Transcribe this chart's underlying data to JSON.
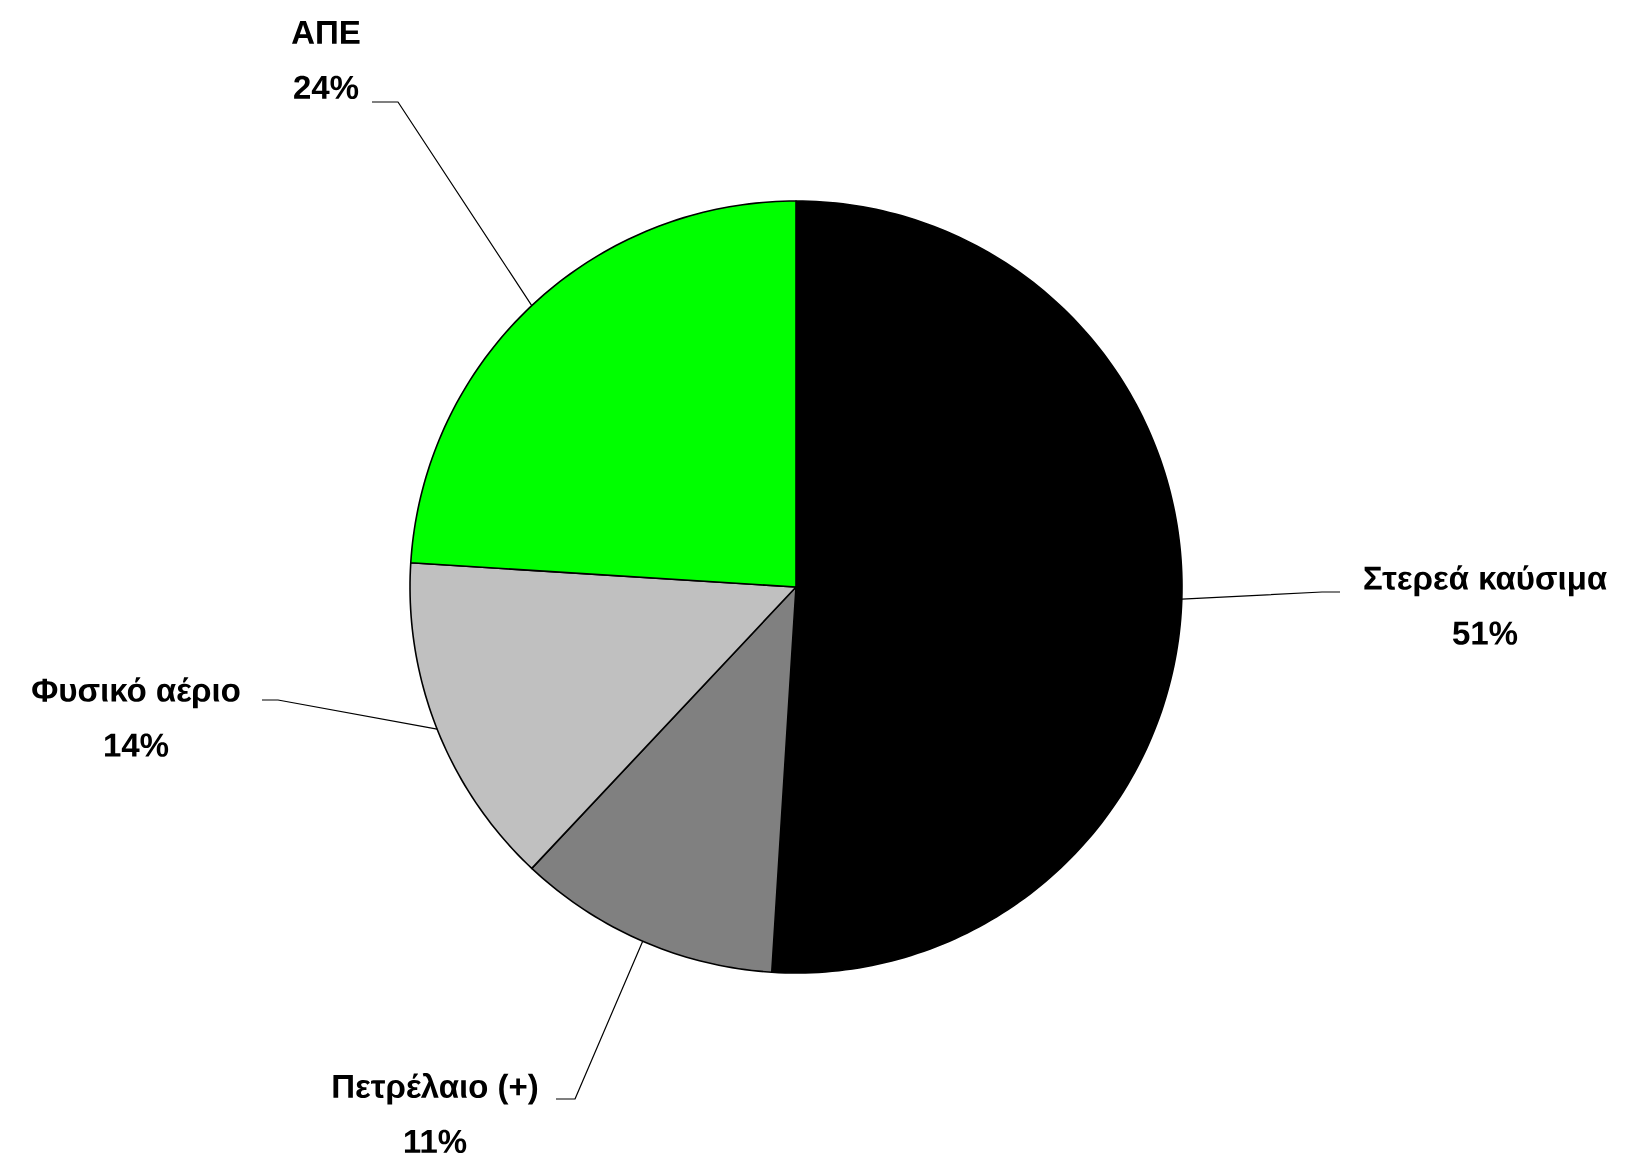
{
  "chart_data": {
    "type": "pie",
    "categories": [
      "Στερεά καύσιμα",
      "Πετρέλαιο (+)",
      "Φυσικό αέριο",
      "ΑΠΕ"
    ],
    "values": [
      51,
      11,
      14,
      24
    ],
    "colors": [
      "#000000",
      "#808080",
      "#c0c0c0",
      "#00ff00"
    ],
    "value_labels": [
      "51%",
      "11%",
      "14%",
      "24%"
    ]
  }
}
